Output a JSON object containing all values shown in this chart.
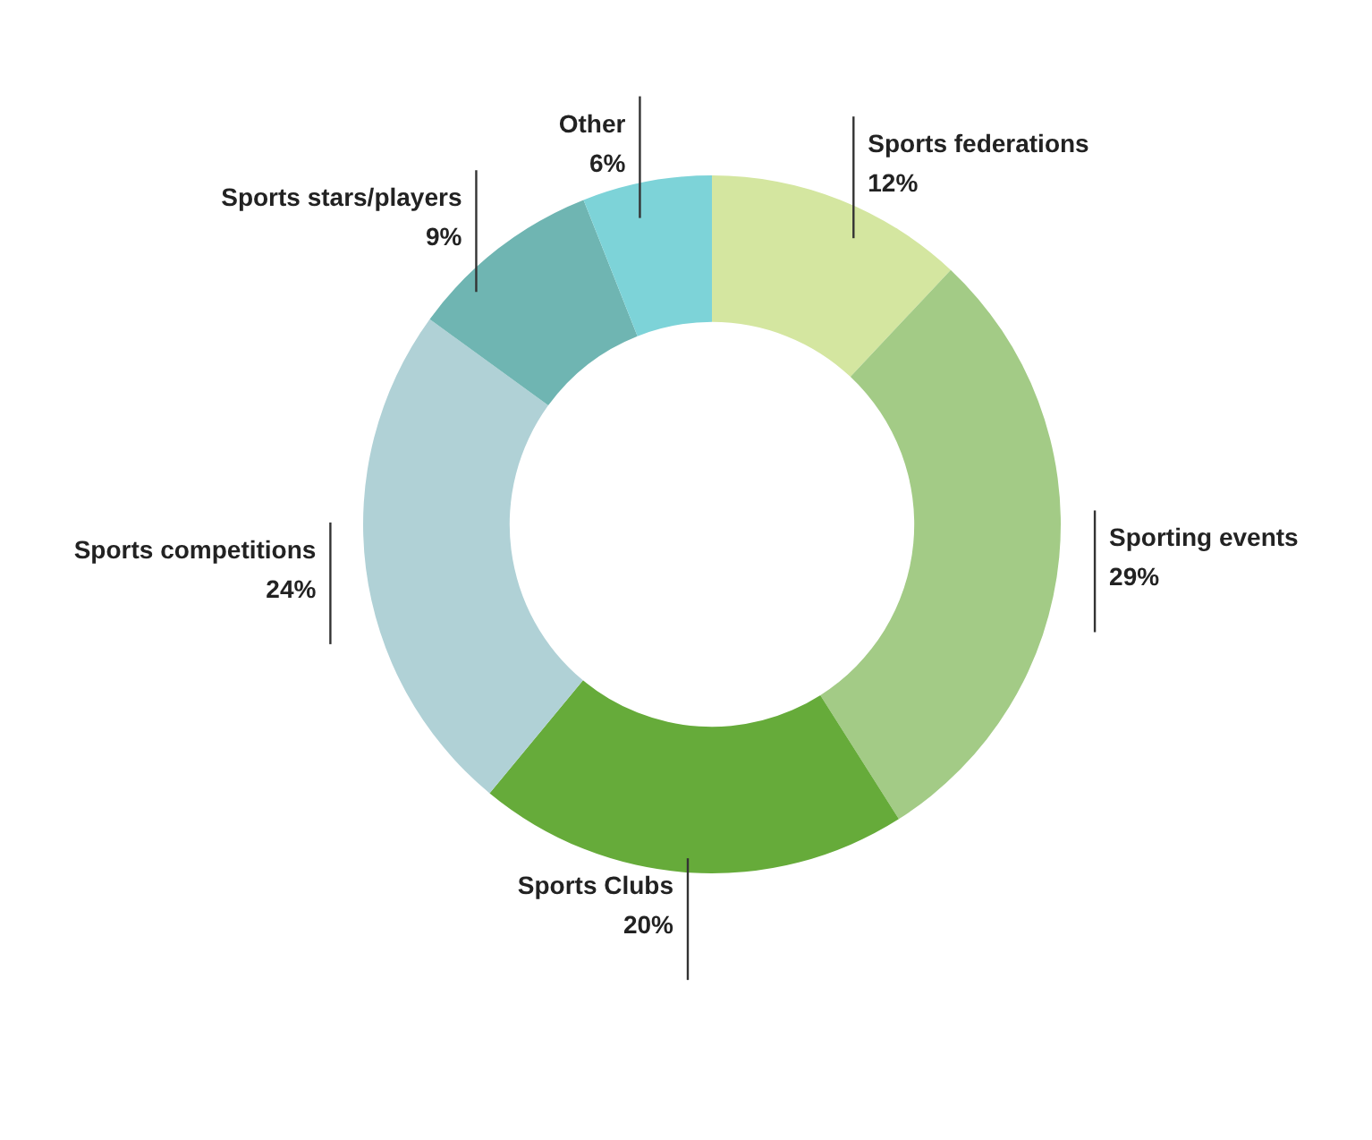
{
  "chart_data": {
    "type": "donut",
    "categories": [
      "Sports federations",
      "Sporting events",
      "Sports Clubs",
      "Sports competitions",
      "Sports stars/players",
      "Other"
    ],
    "values": [
      12,
      29,
      20,
      24,
      9,
      6
    ],
    "value_labels": [
      "12%",
      "29%",
      "20%",
      "24%",
      "9%",
      "6%"
    ],
    "colors": [
      "#d4e6a0",
      "#a3cb86",
      "#66ab3a",
      "#b0d1d6",
      "#6fb5b2",
      "#7dd3d8"
    ]
  }
}
